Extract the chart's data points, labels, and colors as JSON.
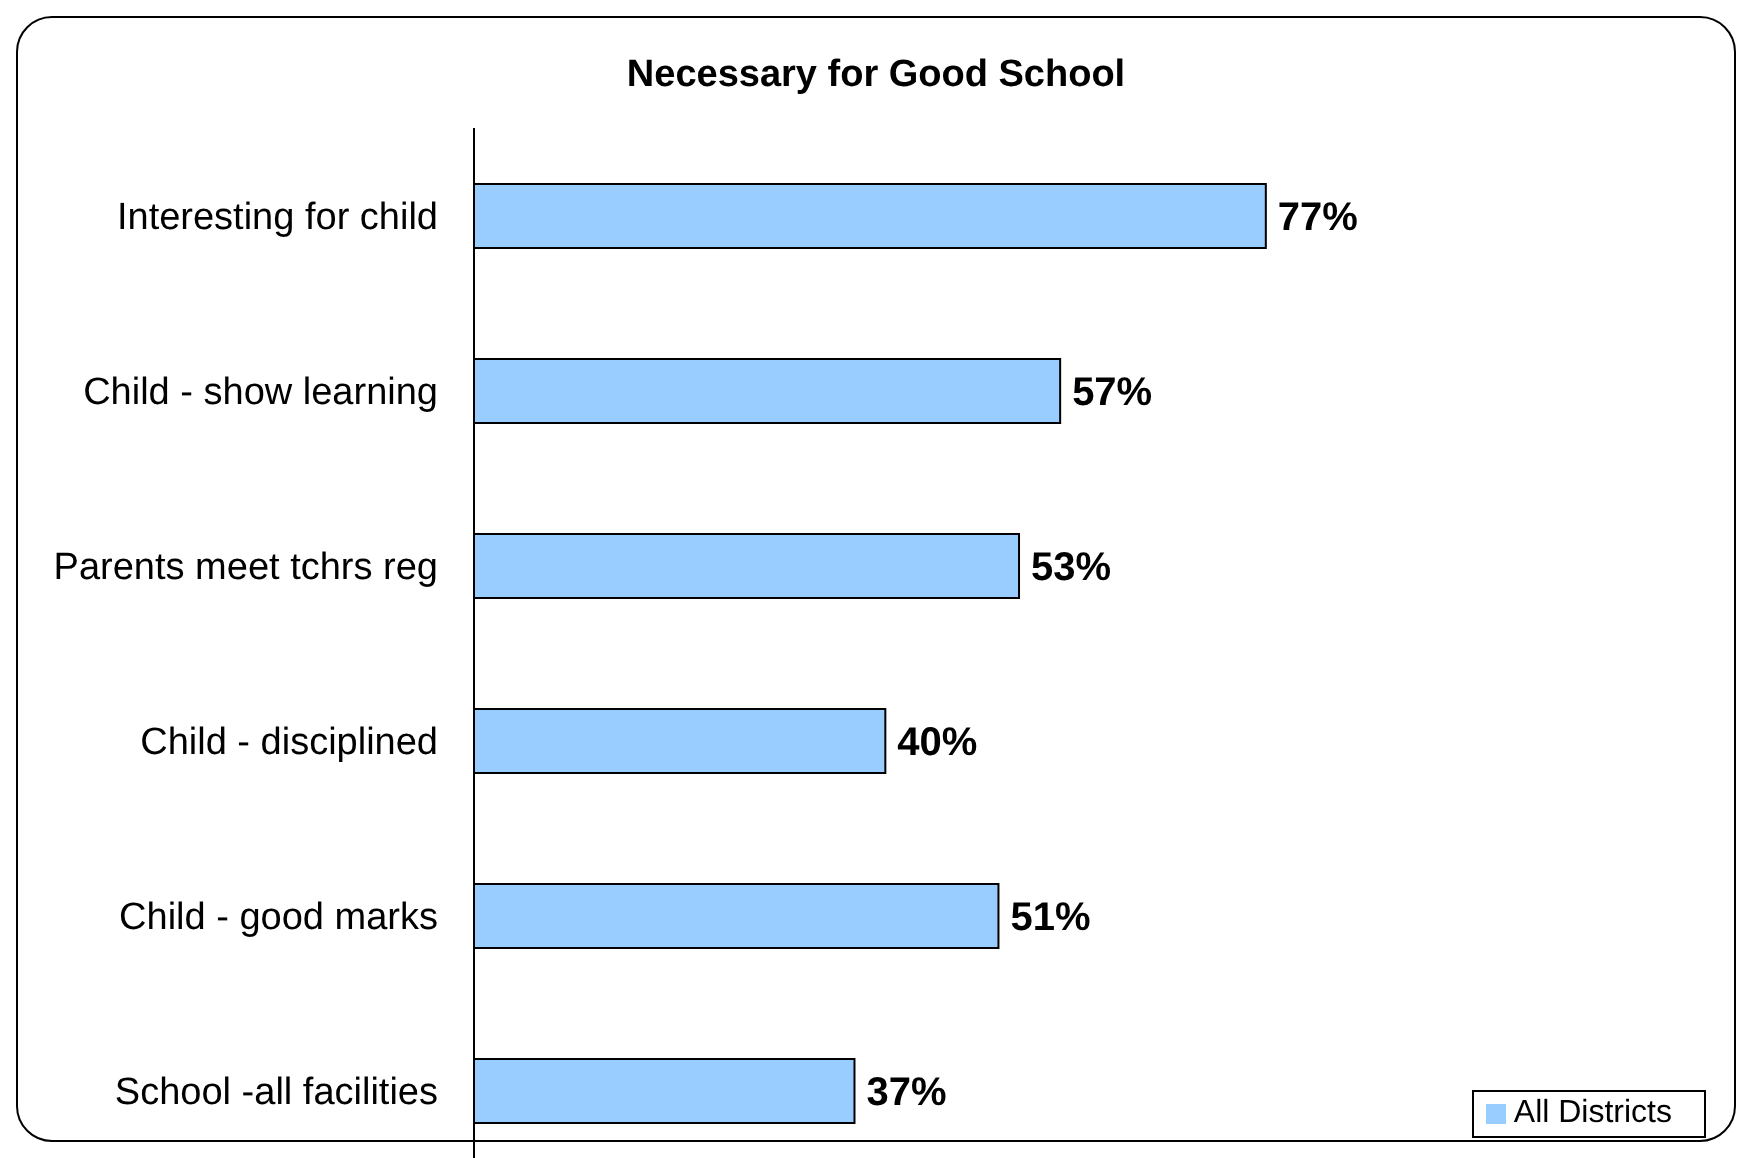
{
  "chart_data": {
    "type": "bar",
    "orientation": "horizontal",
    "title": "Necessary for Good School",
    "categories": [
      "Interesting for child",
      "Child - show learning",
      "Parents meet tchrs reg",
      "Child - disciplined",
      "Child - good marks",
      "School -all facilities"
    ],
    "series": [
      {
        "name": "All Districts",
        "color": "#99ccff",
        "values": [
          77,
          57,
          53,
          40,
          51,
          37
        ],
        "value_labels": [
          "77%",
          "57%",
          "53%",
          "40%",
          "51%",
          "37%"
        ]
      }
    ],
    "legend": "bottom right"
  }
}
